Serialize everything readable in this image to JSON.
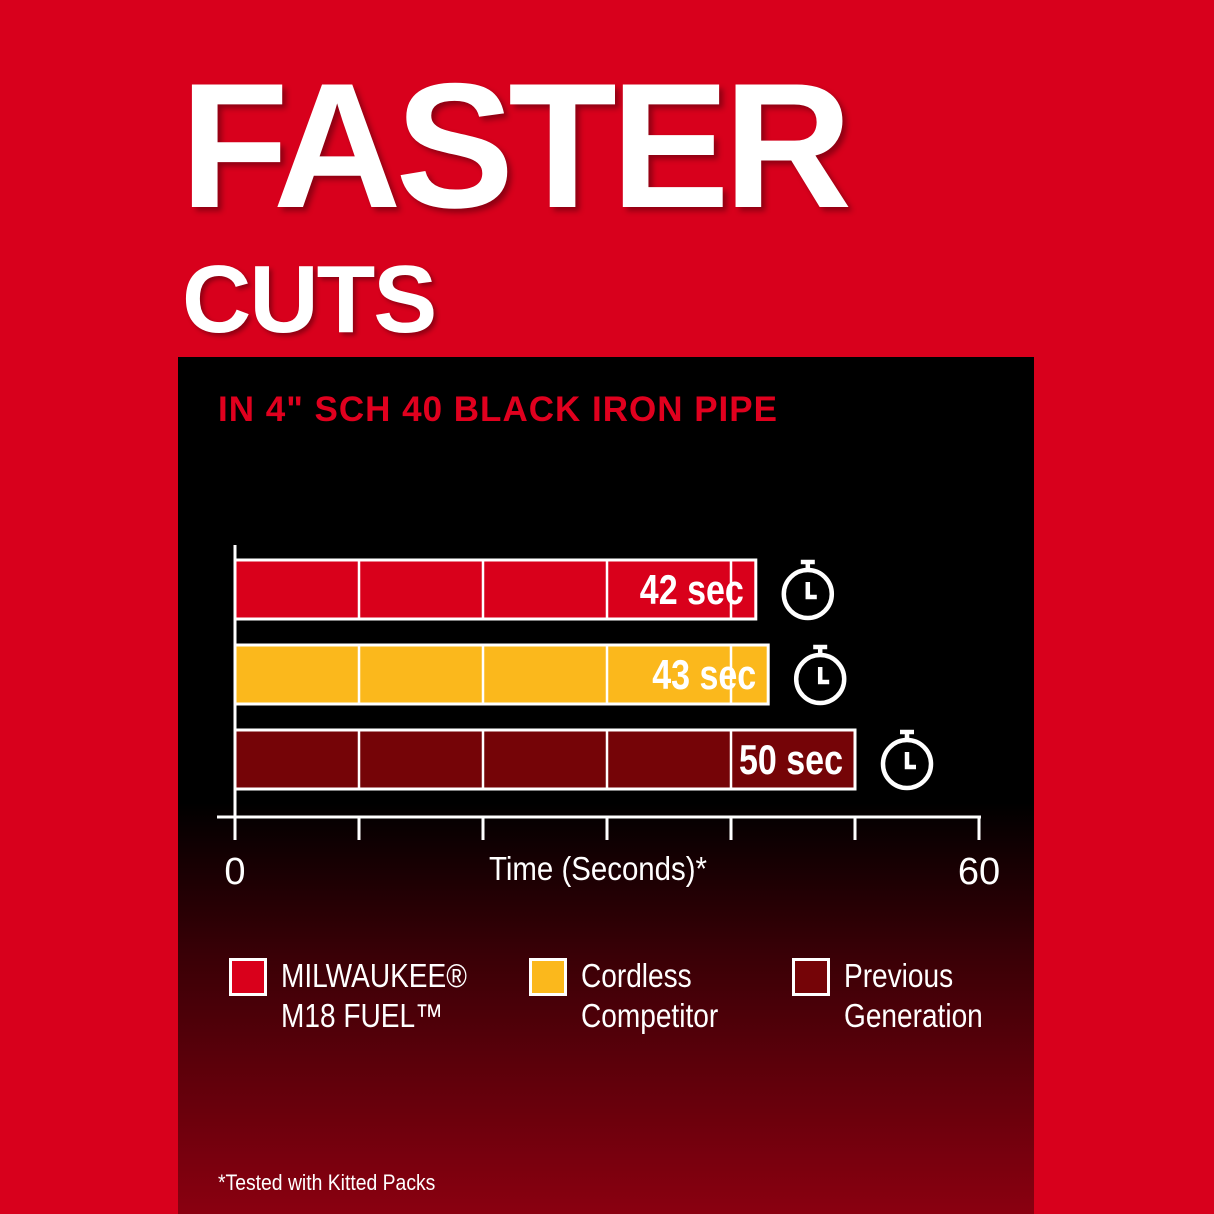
{
  "header": {
    "title": "FASTER",
    "subtitle": "CUTS"
  },
  "chart_data": {
    "type": "bar",
    "orientation": "horizontal",
    "title": "IN 4\" SCH 40 BLACK IRON PIPE",
    "xlabel": "Time (Seconds)*",
    "xlim": [
      0,
      60
    ],
    "tick_labels": [
      "0",
      "60"
    ],
    "gridlines_every": 10,
    "categories": [
      "MILWAUKEE® M18 FUEL™",
      "Cordless Competitor",
      "Previous Generation"
    ],
    "values": [
      42,
      43,
      50
    ],
    "data_labels": [
      "42 sec",
      "43 sec",
      "50 sec"
    ],
    "colors": [
      "#d9001b",
      "#fbb81c",
      "#750407"
    ],
    "icon": "stopwatch-icon",
    "legend_placement": "bottom"
  },
  "legend": [
    {
      "line1": "MILWAUKEE®",
      "line2": "M18 FUEL™"
    },
    {
      "line1": "Cordless",
      "line2": "Competitor"
    },
    {
      "line1": "Previous",
      "line2": "Generation"
    }
  ],
  "footnote": "*Tested with Kitted Packs"
}
